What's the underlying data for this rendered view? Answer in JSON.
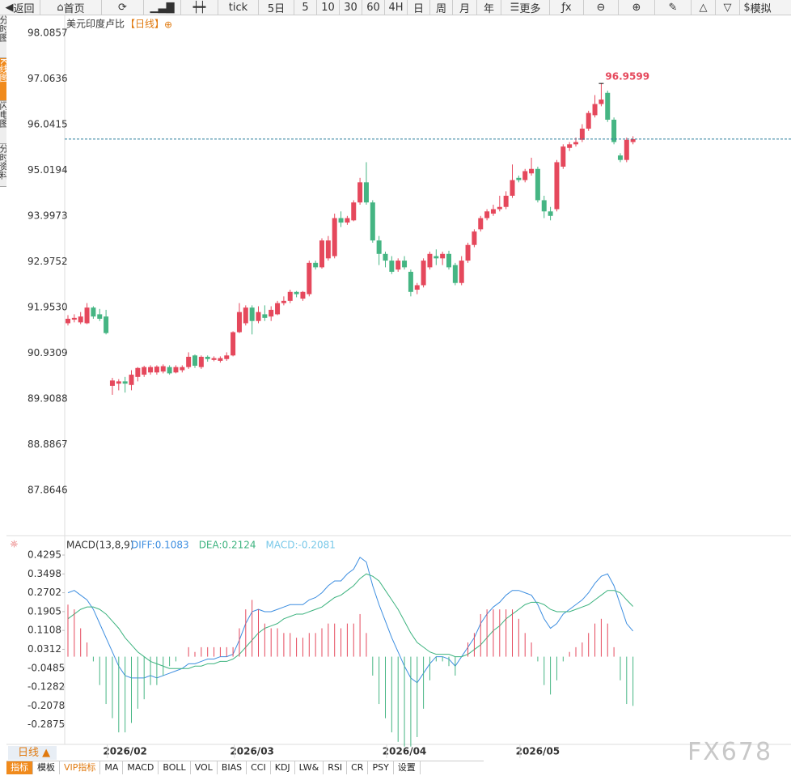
{
  "toolbar": {
    "back": "返回",
    "home": "首页",
    "tick": "tick",
    "periods": [
      "5日",
      "5",
      "10",
      "30",
      "60",
      "4H",
      "日",
      "周",
      "月",
      "年"
    ],
    "more": "更多",
    "sim": "模拟"
  },
  "side_tabs": [
    "分时图",
    "K线图",
    "闪电图",
    "分时资料"
  ],
  "chart_data": [
    {
      "type": "candlestick",
      "title": "美元印度卢比",
      "period_label": "【日线】",
      "up_color": "#e5485c",
      "down_color": "#45b583",
      "price_line_color": "#2b7d9c",
      "ylim": [
        86.888,
        98.5
      ],
      "yticks": [
        98.0857,
        97.0636,
        96.0415,
        95.0194,
        93.9973,
        92.9752,
        {
          "value": 91.953,
          "label": "91.9530"
        },
        90.9309,
        89.9088,
        88.8867,
        87.8646
      ],
      "annotations": [
        {
          "text": "96.9599"
        }
      ],
      "candles": [
        [
          91.6,
          91.78,
          91.55,
          91.7
        ],
        [
          91.68,
          91.8,
          91.62,
          91.72
        ],
        [
          91.62,
          91.85,
          91.58,
          91.75
        ],
        [
          91.6,
          92.05,
          91.58,
          91.95
        ],
        [
          91.95,
          91.98,
          91.7,
          91.75
        ],
        [
          91.8,
          91.92,
          91.65,
          91.7
        ],
        [
          91.75,
          91.9,
          91.35,
          91.38
        ],
        [
          90.2,
          90.38,
          90.0,
          90.32
        ],
        [
          90.25,
          90.35,
          90.1,
          90.3
        ],
        [
          90.3,
          90.4,
          90.05,
          90.25
        ],
        [
          90.22,
          90.55,
          90.1,
          90.45
        ],
        [
          90.4,
          90.62,
          90.3,
          90.6
        ],
        [
          90.45,
          90.65,
          90.4,
          90.62
        ],
        [
          90.5,
          90.66,
          90.45,
          90.62
        ],
        [
          90.5,
          90.66,
          90.45,
          90.63
        ],
        [
          90.52,
          90.68,
          90.48,
          90.64
        ],
        [
          90.62,
          90.66,
          90.45,
          90.48
        ],
        [
          90.5,
          90.66,
          90.48,
          90.62
        ],
        [
          90.55,
          90.66,
          90.5,
          90.62
        ],
        [
          90.62,
          90.95,
          90.58,
          90.85
        ],
        [
          90.88,
          90.9,
          90.6,
          90.65
        ],
        [
          90.62,
          90.88,
          90.58,
          90.85
        ],
        [
          90.85,
          90.88,
          90.74,
          90.8
        ],
        [
          90.78,
          90.86,
          90.75,
          90.82
        ],
        [
          90.76,
          90.86,
          90.72,
          90.82
        ],
        [
          90.8,
          90.95,
          90.76,
          90.88
        ],
        [
          90.88,
          91.42,
          90.86,
          91.4
        ],
        [
          91.4,
          92.05,
          91.38,
          91.85
        ],
        [
          91.6,
          92.0,
          91.55,
          91.95
        ],
        [
          91.95,
          92.0,
          91.35,
          91.65
        ],
        [
          91.65,
          91.98,
          91.6,
          91.85
        ],
        [
          91.8,
          92.0,
          91.65,
          91.72
        ],
        [
          91.75,
          91.98,
          91.65,
          91.9
        ],
        [
          91.8,
          92.1,
          91.78,
          92.05
        ],
        [
          92.05,
          92.2,
          92.0,
          92.1
        ],
        [
          92.1,
          92.35,
          92.05,
          92.3
        ],
        [
          92.3,
          92.32,
          92.18,
          92.25
        ],
        [
          92.15,
          92.32,
          92.1,
          92.3
        ],
        [
          92.25,
          93.0,
          92.2,
          92.95
        ],
        [
          92.95,
          93.0,
          92.8,
          92.85
        ],
        [
          92.85,
          93.5,
          92.82,
          93.45
        ],
        [
          93.05,
          93.55,
          93.0,
          93.45
        ],
        [
          93.1,
          94.05,
          93.05,
          93.95
        ],
        [
          93.95,
          94.1,
          93.75,
          93.85
        ],
        [
          93.85,
          94.0,
          93.8,
          93.95
        ],
        [
          93.9,
          94.35,
          93.88,
          94.3
        ],
        [
          94.3,
          94.85,
          94.25,
          94.75
        ],
        [
          94.75,
          95.2,
          94.25,
          94.3
        ],
        [
          94.3,
          94.35,
          93.4,
          93.45
        ],
        [
          93.45,
          93.55,
          92.9,
          93.15
        ],
        [
          93.15,
          93.2,
          92.85,
          93.0
        ],
        [
          93.0,
          93.1,
          92.7,
          92.75
        ],
        [
          92.8,
          93.05,
          92.75,
          93.0
        ],
        [
          93.0,
          93.1,
          92.8,
          92.85
        ],
        [
          92.75,
          92.8,
          92.2,
          92.3
        ],
        [
          92.35,
          92.5,
          92.25,
          92.45
        ],
        [
          92.45,
          93.05,
          92.4,
          93.0
        ],
        [
          92.85,
          93.2,
          92.8,
          93.15
        ],
        [
          93.1,
          93.25,
          92.9,
          93.05
        ],
        [
          93.05,
          93.2,
          92.9,
          93.15
        ],
        [
          93.15,
          93.22,
          92.8,
          92.85
        ],
        [
          92.9,
          92.95,
          92.45,
          92.5
        ],
        [
          92.5,
          93.1,
          92.45,
          93.0
        ],
        [
          93.0,
          93.4,
          92.95,
          93.35
        ],
        [
          93.35,
          93.7,
          93.3,
          93.65
        ],
        [
          93.7,
          94.0,
          93.65,
          93.95
        ],
        [
          93.95,
          94.15,
          93.9,
          94.1
        ],
        [
          94.05,
          94.25,
          94.0,
          94.15
        ],
        [
          94.15,
          94.45,
          94.1,
          94.2
        ],
        [
          94.2,
          94.55,
          94.15,
          94.45
        ],
        [
          94.45,
          95.15,
          94.4,
          94.8
        ],
        [
          94.85,
          94.9,
          94.75,
          94.8
        ],
        [
          94.8,
          95.05,
          94.75,
          95.0
        ],
        [
          94.95,
          95.3,
          94.9,
          95.05
        ],
        [
          95.05,
          95.1,
          94.3,
          94.35
        ],
        [
          94.35,
          94.45,
          93.95,
          94.1
        ],
        [
          94.1,
          94.2,
          93.9,
          94.0
        ],
        [
          94.15,
          95.25,
          94.1,
          95.2
        ],
        [
          95.1,
          95.6,
          95.05,
          95.55
        ],
        [
          95.52,
          95.65,
          95.45,
          95.6
        ],
        [
          95.6,
          95.75,
          95.55,
          95.65
        ],
        [
          95.7,
          96.05,
          95.65,
          95.95
        ],
        [
          95.95,
          96.35,
          95.9,
          96.3
        ],
        [
          96.25,
          96.7,
          96.2,
          96.5
        ],
        [
          96.5,
          96.9599,
          96.45,
          96.6
        ],
        [
          96.75,
          96.8,
          96.1,
          96.15
        ],
        [
          96.15,
          96.2,
          95.6,
          95.65
        ],
        [
          95.35,
          95.4,
          95.2,
          95.25
        ],
        [
          95.25,
          95.75,
          95.2,
          95.7
        ],
        [
          95.65,
          95.78,
          95.6,
          95.716
        ]
      ]
    },
    {
      "type": "macd",
      "title": "MACD(13,8,9)",
      "ylim": [
        -0.364,
        0.45
      ],
      "yticks": [
        0.4295,
        0.3498,
        0.2702,
        0.1905,
        0.1108,
        0.0312,
        -0.0485,
        -0.1282,
        -0.2078,
        -0.2875
      ],
      "categories": [
        null,
        null,
        null,
        null,
        null,
        null,
        null,
        null,
        null,
        "2026/02",
        null,
        null,
        null,
        null,
        null,
        null,
        null,
        null,
        null,
        null,
        null,
        null,
        null,
        null,
        null,
        null,
        null,
        null,
        null,
        "2026/03",
        null,
        null,
        null,
        null,
        null,
        null,
        null,
        null,
        null,
        null,
        null,
        null,
        null,
        null,
        null,
        null,
        null,
        null,
        null,
        null,
        null,
        null,
        null,
        "2026/04",
        null,
        null,
        null,
        null,
        null,
        null,
        null,
        null,
        null,
        null,
        null,
        null,
        null,
        null,
        null,
        null,
        null,
        null,
        null,
        null,
        "2026/05",
        null,
        null,
        null,
        null,
        null,
        null,
        null,
        null,
        null,
        null,
        null,
        null,
        null,
        null,
        null
      ],
      "series": [
        {
          "label": "DIFF:0.1083",
          "kind": "line",
          "color": "#3d8ee0",
          "values": [
            0.27,
            0.28,
            0.26,
            0.24,
            0.2,
            0.14,
            0.08,
            0.02,
            -0.04,
            -0.08,
            -0.09,
            -0.09,
            -0.09,
            -0.08,
            -0.09,
            -0.08,
            -0.07,
            -0.06,
            -0.05,
            -0.03,
            -0.03,
            -0.02,
            -0.01,
            -0.01,
            0,
            0,
            0.01,
            0.07,
            0.14,
            0.19,
            0.2,
            0.19,
            0.19,
            0.2,
            0.21,
            0.22,
            0.22,
            0.22,
            0.24,
            0.25,
            0.27,
            0.3,
            0.32,
            0.32,
            0.35,
            0.37,
            0.42,
            0.4,
            0.3,
            0.22,
            0.15,
            0.08,
            0.02,
            -0.04,
            -0.09,
            -0.11,
            -0.07,
            -0.03,
            0,
            0,
            -0.01,
            -0.04,
            0,
            0.04,
            0.08,
            0.14,
            0.18,
            0.21,
            0.23,
            0.26,
            0.28,
            0.28,
            0.27,
            0.26,
            0.22,
            0.16,
            0.12,
            0.14,
            0.18,
            0.2,
            0.22,
            0.24,
            0.27,
            0.31,
            0.34,
            0.35,
            0.3,
            0.22,
            0.14,
            0.1083
          ]
        },
        {
          "label": "DEA:0.2124",
          "kind": "line",
          "color": "#3db37f",
          "values": [
            0.16,
            0.18,
            0.2,
            0.21,
            0.21,
            0.2,
            0.18,
            0.15,
            0.12,
            0.08,
            0.05,
            0.02,
            0,
            -0.02,
            -0.03,
            -0.04,
            -0.05,
            -0.05,
            -0.05,
            -0.05,
            -0.04,
            -0.04,
            -0.03,
            -0.03,
            -0.02,
            -0.02,
            -0.01,
            0.01,
            0.04,
            0.07,
            0.1,
            0.12,
            0.13,
            0.14,
            0.16,
            0.17,
            0.18,
            0.18,
            0.19,
            0.2,
            0.21,
            0.23,
            0.25,
            0.26,
            0.28,
            0.3,
            0.33,
            0.35,
            0.34,
            0.32,
            0.28,
            0.24,
            0.2,
            0.15,
            0.1,
            0.06,
            0.04,
            0.02,
            0.01,
            0.01,
            0.01,
            0,
            0,
            0.01,
            0.03,
            0.05,
            0.08,
            0.11,
            0.13,
            0.16,
            0.18,
            0.2,
            0.22,
            0.23,
            0.23,
            0.22,
            0.2,
            0.19,
            0.19,
            0.19,
            0.2,
            0.21,
            0.22,
            0.24,
            0.26,
            0.28,
            0.28,
            0.27,
            0.24,
            0.2124
          ]
        },
        {
          "label": "MACD:-0.2081",
          "kind": "bar",
          "color": "#78c8e8",
          "up_color": "#e5485c",
          "down_color": "#45b583",
          "values": [
            0.22,
            0.2,
            0.12,
            0.06,
            -0.02,
            -0.12,
            -0.2,
            -0.26,
            -0.32,
            -0.32,
            -0.28,
            -0.22,
            -0.18,
            -0.12,
            -0.12,
            -0.08,
            -0.04,
            -0.02,
            0,
            0.04,
            0.02,
            0.04,
            0.04,
            0.04,
            0.04,
            0.04,
            0.04,
            0.12,
            0.2,
            0.24,
            0.2,
            0.14,
            0.12,
            0.12,
            0.1,
            0.1,
            0.08,
            0.08,
            0.1,
            0.1,
            0.12,
            0.14,
            0.14,
            0.12,
            0.14,
            0.14,
            0.18,
            0.1,
            -0.08,
            -0.2,
            -0.26,
            -0.32,
            -0.36,
            -0.38,
            -0.38,
            -0.34,
            -0.22,
            -0.1,
            -0.02,
            -0.02,
            -0.04,
            -0.08,
            0,
            0.06,
            0.1,
            0.18,
            0.2,
            0.2,
            0.2,
            0.2,
            0.2,
            0.16,
            0.1,
            0.06,
            -0.02,
            -0.12,
            -0.16,
            -0.1,
            -0.02,
            0.02,
            0.04,
            0.06,
            0.1,
            0.14,
            0.16,
            0.14,
            0.04,
            -0.1,
            -0.2,
            -0.2081
          ]
        }
      ]
    }
  ],
  "bottom": {
    "period": "日线 ▲",
    "tabs": [
      "指标",
      "模板",
      "VIP指标",
      "MA",
      "MACD",
      "BOLL",
      "VOL",
      "BIAS",
      "CCI",
      "KDJ",
      "LW&",
      "RSI",
      "CR",
      "PSY",
      "设置"
    ]
  },
  "watermark": "FX678"
}
